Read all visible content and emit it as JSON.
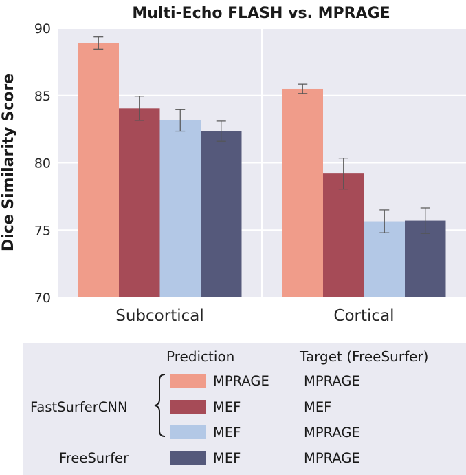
{
  "chart_data": {
    "type": "bar",
    "title": "Multi-Echo FLASH vs. MPRAGE",
    "xlabel": "",
    "ylabel": "Dice Similarity Score",
    "ylim": [
      70,
      90
    ],
    "yticks": [
      70,
      75,
      80,
      85,
      90
    ],
    "categories": [
      "Subcortical",
      "Cortical"
    ],
    "grid": true,
    "series": [
      {
        "values": [
          88.9,
          85.5
        ],
        "errors": [
          0.45,
          0.35
        ],
        "color": "#f09c8a"
      },
      {
        "values": [
          84.05,
          79.2
        ],
        "errors": [
          0.9,
          1.15
        ],
        "color": "#a64b57"
      },
      {
        "values": [
          83.15,
          75.65
        ],
        "errors": [
          0.8,
          0.85
        ],
        "color": "#b3c8e6"
      },
      {
        "values": [
          82.35,
          75.7
        ],
        "errors": [
          0.75,
          0.95
        ],
        "color": "#55597b"
      }
    ]
  },
  "legend": {
    "header_prediction": "Prediction",
    "header_target": "Target (FreeSurfer)",
    "group_fastsurfer": "FastSurferCNN",
    "group_freesurfer": "FreeSurfer",
    "rows": [
      {
        "prediction": "MPRAGE",
        "target": "MPRAGE",
        "color": "#f09c8a"
      },
      {
        "prediction": "MEF",
        "target": "MEF",
        "color": "#a64b57"
      },
      {
        "prediction": "MEF",
        "target": "MPRAGE",
        "color": "#b3c8e6"
      },
      {
        "prediction": "MEF",
        "target": "MPRAGE",
        "color": "#55597b"
      }
    ]
  }
}
